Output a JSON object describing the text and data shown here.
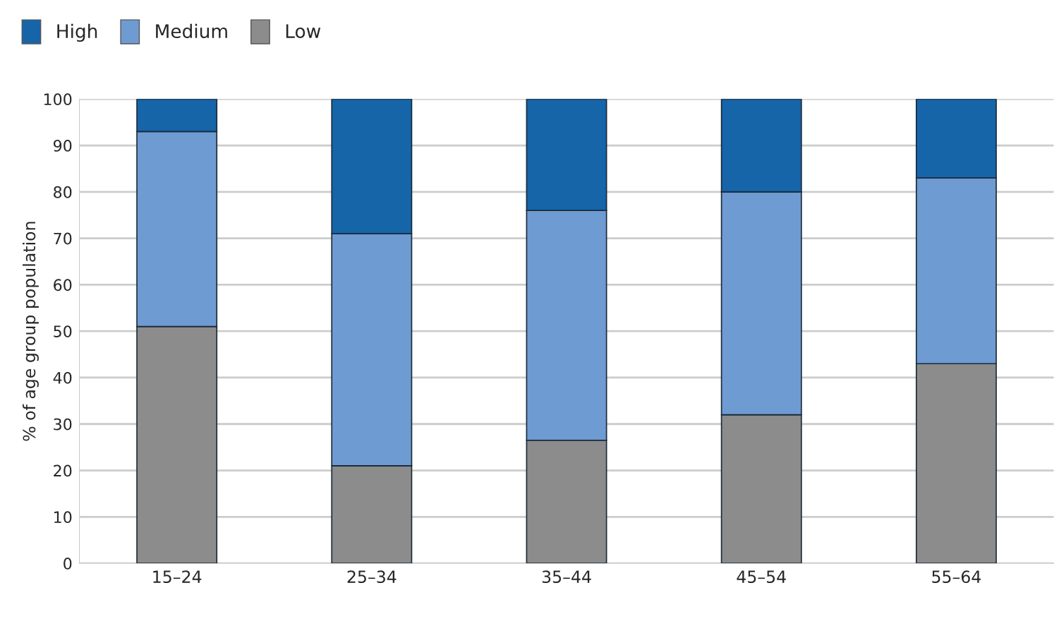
{
  "chart_data": {
    "type": "bar",
    "stacked": true,
    "ylabel": "% of age group population",
    "categories": [
      "15–24",
      "25–34",
      "35–44",
      "45–54",
      "55–64"
    ],
    "series": [
      {
        "name": "Low",
        "color": "#8c8c8c",
        "values": [
          51,
          21,
          26.5,
          32,
          43
        ]
      },
      {
        "name": "Medium",
        "color": "#6e9bd1",
        "values": [
          42,
          50,
          49.5,
          48,
          40
        ]
      },
      {
        "name": "High",
        "color": "#1565a8",
        "values": [
          7,
          29,
          24,
          20,
          17
        ]
      }
    ],
    "ylim": [
      0,
      100
    ],
    "yticks": [
      0,
      10,
      20,
      30,
      40,
      50,
      60,
      70,
      80,
      90,
      100
    ],
    "grid": "y",
    "legend": "top left"
  }
}
